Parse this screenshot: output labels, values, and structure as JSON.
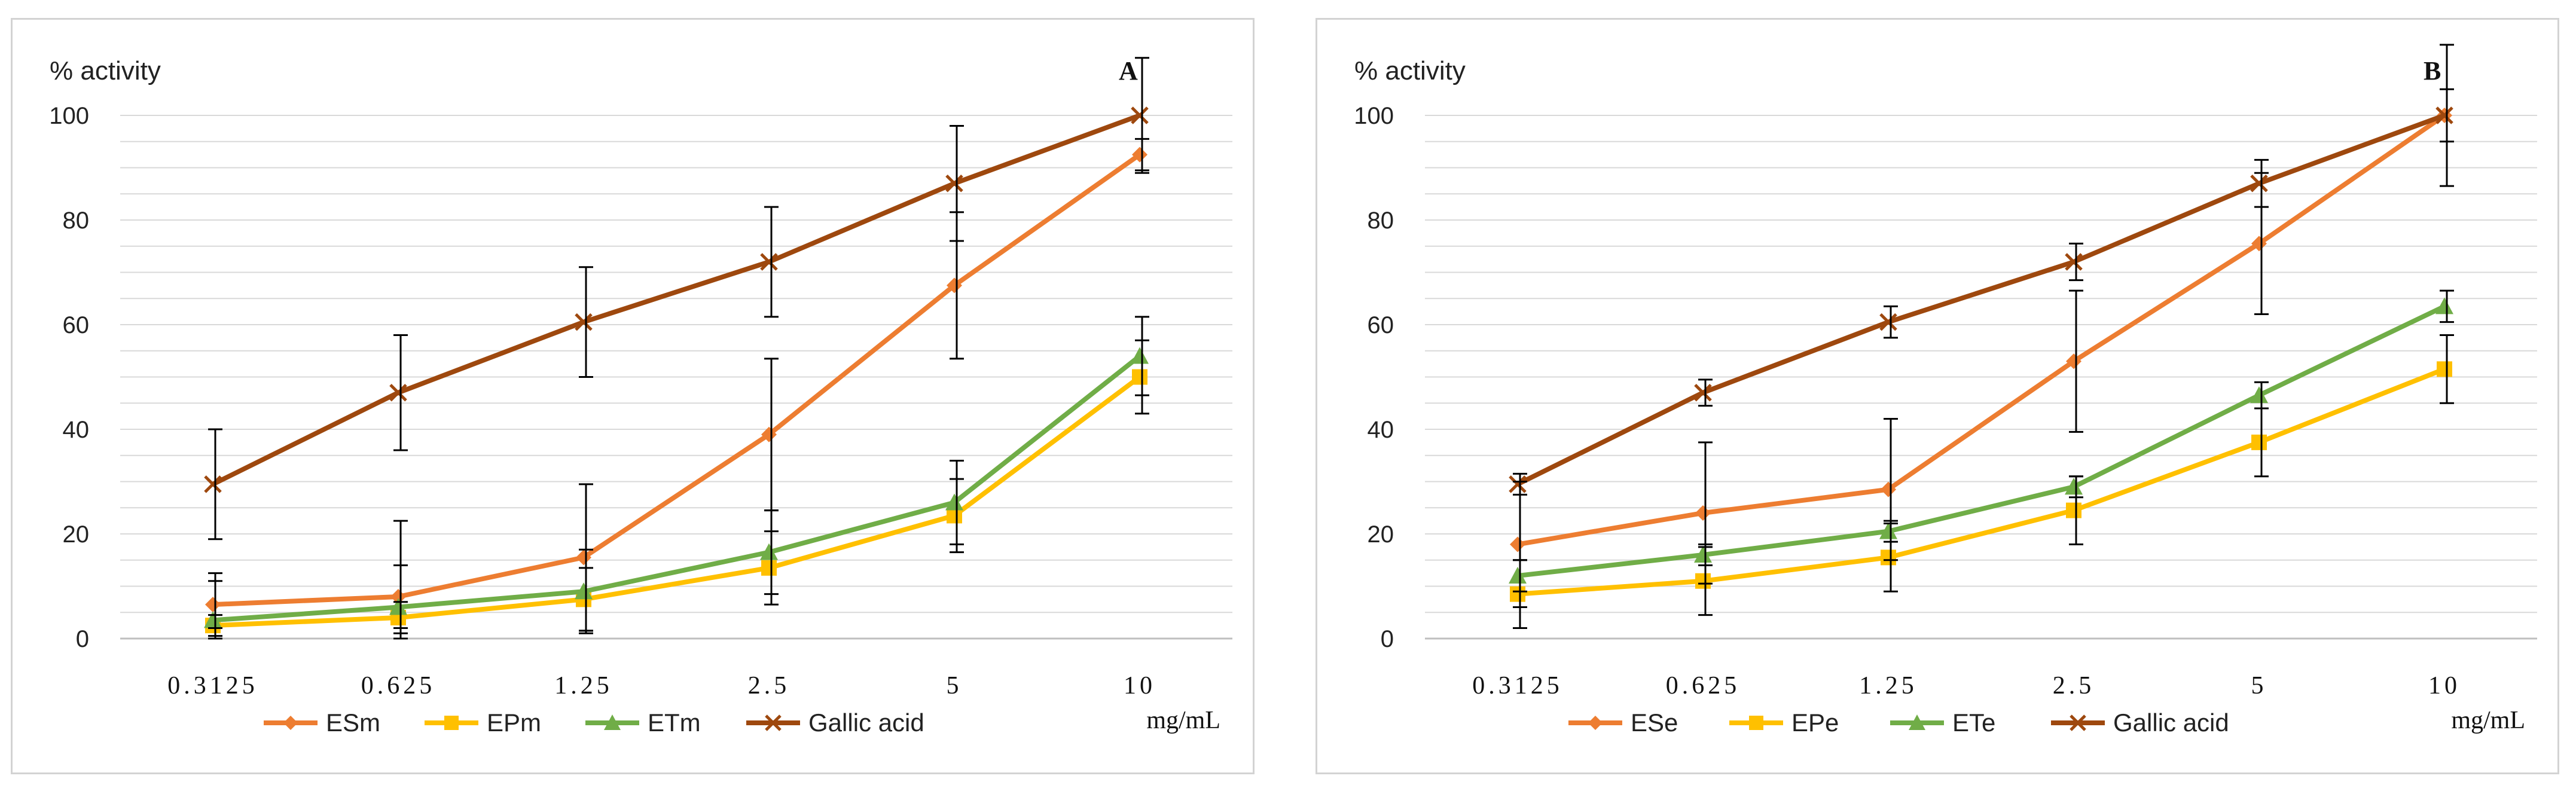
{
  "colors": {
    "esm": "#ED7D31",
    "epm": "#FFC000",
    "etm": "#70AD47",
    "gallic": "#9E480E",
    "grid": "#d9d9d9",
    "errorbar": "#000000"
  },
  "chart_data": [
    {
      "type": "line",
      "panel_label": "A",
      "ylabel": "% activity",
      "xlabel": "mg/mL",
      "categories": [
        "0.3125",
        "0.625",
        "1.25",
        "2.5",
        "5",
        "10"
      ],
      "ylim": [
        0,
        100
      ],
      "yticks": [
        0,
        20,
        40,
        60,
        80,
        100
      ],
      "grid": true,
      "legend": "bottom",
      "series": [
        {
          "name": "ESm",
          "marker": "diamond",
          "color": "#ED7D31",
          "values": [
            6.5,
            8,
            15.5,
            39,
            67.5,
            92.5
          ],
          "errors": [
            4.5,
            6,
            14,
            14.5,
            14,
            3
          ]
        },
        {
          "name": "EPm",
          "marker": "square",
          "color": "#FFC000",
          "values": [
            2.5,
            4,
            7.5,
            13.5,
            23.5,
            50
          ],
          "errors": [
            2,
            3,
            6,
            7,
            7,
            7
          ]
        },
        {
          "name": "ETm",
          "marker": "triangle",
          "color": "#70AD47",
          "values": [
            3.5,
            6,
            9,
            16.5,
            26,
            54
          ],
          "errors": [
            9,
            16.5,
            8,
            8,
            8,
            7.5
          ]
        },
        {
          "name": "Gallic acid",
          "marker": "x",
          "color": "#9E480E",
          "values": [
            29.5,
            47,
            60.5,
            72,
            87,
            100
          ],
          "errors": [
            10.5,
            11,
            10.5,
            10.5,
            11,
            11
          ]
        }
      ]
    },
    {
      "type": "line",
      "panel_label": "B",
      "ylabel": "% activity",
      "xlabel": "mg/mL",
      "categories": [
        "0.3125",
        "0.625",
        "1.25",
        "2.5",
        "5",
        "10"
      ],
      "ylim": [
        0,
        100
      ],
      "yticks": [
        0,
        20,
        40,
        60,
        80,
        100
      ],
      "grid": true,
      "legend": "bottom",
      "series": [
        {
          "name": "ESe",
          "marker": "diamond",
          "color": "#ED7D31",
          "values": [
            18,
            24,
            28.5,
            53,
            75.5,
            100
          ],
          "errors": [
            12,
            13.5,
            13.5,
            13.5,
            13.5,
            13.5
          ]
        },
        {
          "name": "EPe",
          "marker": "square",
          "color": "#FFC000",
          "values": [
            8.5,
            11,
            15.5,
            24.5,
            37.5,
            51.5
          ],
          "errors": [
            6.5,
            6.5,
            6.5,
            6.5,
            6.5,
            6.5
          ]
        },
        {
          "name": "ETe",
          "marker": "triangle",
          "color": "#70AD47",
          "values": [
            12,
            16,
            20.5,
            29,
            46.5,
            63.5
          ],
          "errors": [
            3,
            2,
            2,
            2,
            2.5,
            3
          ]
        },
        {
          "name": "Gallic acid",
          "marker": "x",
          "color": "#9E480E",
          "values": [
            29.5,
            47,
            60.5,
            72,
            87,
            100
          ],
          "errors": [
            2,
            2.5,
            3,
            3.5,
            4.5,
            5
          ]
        }
      ]
    }
  ]
}
